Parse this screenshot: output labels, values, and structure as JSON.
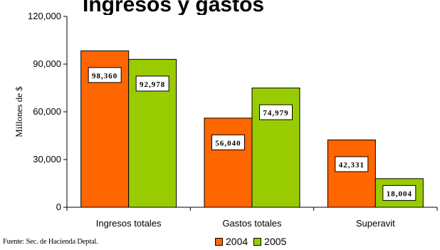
{
  "chart_data": {
    "type": "bar",
    "title": "Ingresos y gastos",
    "ylabel": "Millones de $",
    "xlabel": "",
    "categories": [
      "Ingresos totales",
      "Gastos totales",
      "Superavit"
    ],
    "series": [
      {
        "name": "2004",
        "color": "#FF6600",
        "values": [
          98360,
          56040,
          42331
        ],
        "labels": [
          "98,360",
          "56,040",
          "42,331"
        ]
      },
      {
        "name": "2005",
        "color": "#99CC00",
        "values": [
          92978,
          74979,
          18004
        ],
        "labels": [
          "92,978",
          "74,979",
          "18,004"
        ]
      }
    ],
    "ylim": [
      0,
      120000
    ],
    "yticks": [
      0,
      30000,
      60000,
      90000,
      120000
    ],
    "ytick_labels": [
      "0",
      "30,000",
      "60,000",
      "90,000",
      "120,000"
    ],
    "grid": false,
    "legend": "bottom"
  },
  "footer": {
    "source": "Fuente: Sec. de Hacienda Deptal."
  }
}
